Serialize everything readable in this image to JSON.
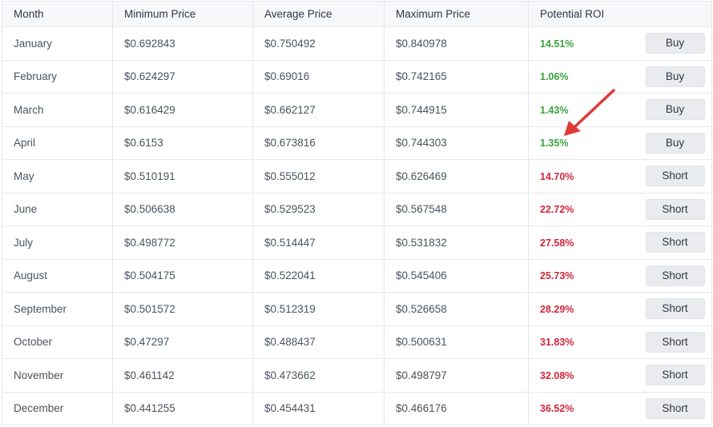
{
  "table": {
    "headers": {
      "month": "Month",
      "min": "Minimum Price",
      "avg": "Average Price",
      "max": "Maximum Price",
      "roi": "Potential ROI"
    },
    "rows": [
      {
        "month": "January",
        "min": "$0.692843",
        "avg": "$0.750492",
        "max": "$0.840978",
        "roi": "14.51%",
        "roi_trend": "up",
        "action": "Buy"
      },
      {
        "month": "February",
        "min": "$0.624297",
        "avg": "$0.69016",
        "max": "$0.742165",
        "roi": "1.06%",
        "roi_trend": "up",
        "action": "Buy"
      },
      {
        "month": "March",
        "min": "$0.616429",
        "avg": "$0.662127",
        "max": "$0.744915",
        "roi": "1.43%",
        "roi_trend": "up",
        "action": "Buy"
      },
      {
        "month": "April",
        "min": "$0.6153",
        "avg": "$0.673816",
        "max": "$0.744303",
        "roi": "1.35%",
        "roi_trend": "up",
        "action": "Buy"
      },
      {
        "month": "May",
        "min": "$0.510191",
        "avg": "$0.555012",
        "max": "$0.626469",
        "roi": "14.70%",
        "roi_trend": "down",
        "action": "Short"
      },
      {
        "month": "June",
        "min": "$0.506638",
        "avg": "$0.529523",
        "max": "$0.567548",
        "roi": "22.72%",
        "roi_trend": "down",
        "action": "Short"
      },
      {
        "month": "July",
        "min": "$0.498772",
        "avg": "$0.514447",
        "max": "$0.531832",
        "roi": "27.58%",
        "roi_trend": "down",
        "action": "Short"
      },
      {
        "month": "August",
        "min": "$0.504175",
        "avg": "$0.522041",
        "max": "$0.545406",
        "roi": "25.73%",
        "roi_trend": "down",
        "action": "Short"
      },
      {
        "month": "September",
        "min": "$0.501572",
        "avg": "$0.512319",
        "max": "$0.526658",
        "roi": "28.29%",
        "roi_trend": "down",
        "action": "Short"
      },
      {
        "month": "October",
        "min": "$0.47297",
        "avg": "$0.488437",
        "max": "$0.500631",
        "roi": "31.83%",
        "roi_trend": "down",
        "action": "Short"
      },
      {
        "month": "November",
        "min": "$0.461142",
        "avg": "$0.473662",
        "max": "$0.498797",
        "roi": "32.08%",
        "roi_trend": "down",
        "action": "Short"
      },
      {
        "month": "December",
        "min": "$0.441255",
        "avg": "$0.454431",
        "max": "$0.466176",
        "roi": "36.52%",
        "roi_trend": "down",
        "action": "Short"
      }
    ]
  },
  "colors": {
    "roi_up": "#3aa33a",
    "roi_down": "#d2263c",
    "annotation_arrow": "#e03a3a"
  },
  "annotation": {
    "icon": "red-arrow-icon",
    "points_to": "April potential ROI"
  }
}
